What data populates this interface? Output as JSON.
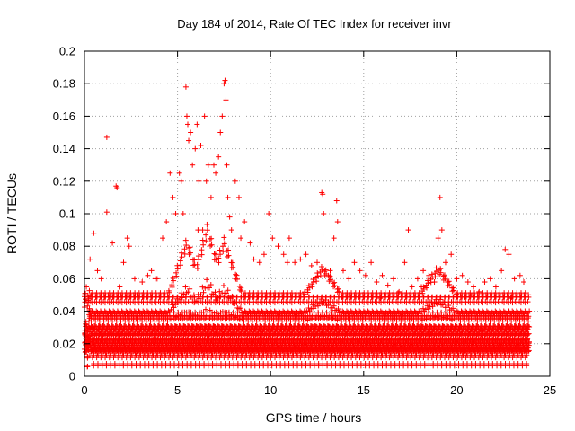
{
  "chart_data": {
    "type": "scatter",
    "title": "Day 184 of 2014, Rate Of TEC Index for receiver invr",
    "xlabel": "GPS time / hours",
    "ylabel": "ROTI / TECUs",
    "xlim": [
      0,
      25
    ],
    "ylim": [
      0,
      0.2
    ],
    "grid": true,
    "marker": "+",
    "color": "#ff0000",
    "x_ticks": [
      0,
      5,
      10,
      15,
      20,
      25
    ],
    "x_tick_labels": [
      "0",
      "5",
      "10",
      "15",
      "20",
      "25"
    ],
    "y_ticks": [
      0,
      0.02,
      0.04,
      0.06,
      0.08,
      0.1,
      0.12,
      0.14,
      0.16,
      0.18,
      0.2
    ],
    "y_tick_labels": [
      "0",
      "0.02",
      "0.04",
      "0.06",
      "0.08",
      "0.1",
      "0.12",
      "0.14",
      "0.16",
      "0.18",
      "0.2"
    ],
    "series": [
      {
        "name": "ROTI",
        "x": [
          0.1,
          0.3,
          0.5,
          0.7,
          0.9,
          1.2,
          1.2,
          1.5,
          1.7,
          1.75,
          2.1,
          2.3,
          2.4,
          2.7,
          3.1,
          3.4,
          3.6,
          3.9,
          4.2,
          4.4,
          4.6,
          4.75,
          4.9,
          5.1,
          5.2,
          5.3,
          5.45,
          5.5,
          5.55,
          5.6,
          5.7,
          5.8,
          5.95,
          6.05,
          6.15,
          6.25,
          6.35,
          6.45,
          6.55,
          6.65,
          6.8,
          6.95,
          7.05,
          7.2,
          7.3,
          7.4,
          7.5,
          7.55,
          7.6,
          7.65,
          7.7,
          7.8,
          7.9,
          8.1,
          8.3,
          8.6,
          8.9,
          9.1,
          9.4,
          9.65,
          9.9,
          10.1,
          10.4,
          10.7,
          11.0,
          11.3,
          11.6,
          11.9,
          12.2,
          12.5,
          12.75,
          12.8,
          12.85,
          13.1,
          13.4,
          13.55,
          13.6,
          13.9,
          14.2,
          14.5,
          14.8,
          15.1,
          15.4,
          15.7,
          16.0,
          16.3,
          16.6,
          16.9,
          17.2,
          17.4,
          17.6,
          17.9,
          18.2,
          18.5,
          18.8,
          19.0,
          19.1,
          19.2,
          19.4,
          19.7,
          20.0,
          20.3,
          20.6,
          20.9,
          21.2,
          21.5,
          21.8,
          22.1,
          22.4,
          22.6,
          22.8,
          23.1,
          23.4,
          23.6,
          0.4,
          1.9,
          3.8,
          6.1,
          8.4,
          10.9,
          13.2,
          15.9,
          18.1,
          20.8,
          22.9
        ],
        "y": [
          0.055,
          0.072,
          0.088,
          0.065,
          0.06,
          0.101,
          0.147,
          0.082,
          0.117,
          0.116,
          0.07,
          0.085,
          0.08,
          0.06,
          0.058,
          0.062,
          0.065,
          0.06,
          0.085,
          0.095,
          0.125,
          0.11,
          0.1,
          0.125,
          0.12,
          0.1,
          0.178,
          0.16,
          0.155,
          0.145,
          0.15,
          0.13,
          0.14,
          0.155,
          0.12,
          0.142,
          0.09,
          0.16,
          0.12,
          0.13,
          0.11,
          0.13,
          0.125,
          0.135,
          0.15,
          0.16,
          0.18,
          0.182,
          0.17,
          0.13,
          0.11,
          0.098,
          0.09,
          0.12,
          0.11,
          0.095,
          0.082,
          0.072,
          0.07,
          0.075,
          0.1,
          0.085,
          0.08,
          0.075,
          0.085,
          0.07,
          0.072,
          0.075,
          0.068,
          0.07,
          0.113,
          0.112,
          0.1,
          0.062,
          0.085,
          0.108,
          0.095,
          0.065,
          0.06,
          0.07,
          0.065,
          0.062,
          0.07,
          0.058,
          0.062,
          0.056,
          0.06,
          0.052,
          0.07,
          0.09,
          0.055,
          0.06,
          0.065,
          0.062,
          0.058,
          0.085,
          0.11,
          0.09,
          0.07,
          0.075,
          0.06,
          0.062,
          0.058,
          0.055,
          0.052,
          0.058,
          0.06,
          0.055,
          0.065,
          0.078,
          0.075,
          0.06,
          0.062,
          0.058,
          0.05,
          0.055,
          0.06,
          0.09,
          0.085,
          0.07,
          0.065,
          0.048,
          0.055,
          0.05,
          0.048
        ]
      }
    ],
    "background_band": {
      "description_free": true,
      "x_start": 0,
      "x_end": 23.9,
      "y_floor_min": 0.004,
      "y_floor_max": 0.018,
      "y_band_max": 0.05,
      "bursts": [
        {
          "x": 5.5,
          "y": 0.09
        },
        {
          "x": 6.6,
          "y": 0.1
        },
        {
          "x": 7.5,
          "y": 0.09
        },
        {
          "x": 12.8,
          "y": 0.07
        },
        {
          "x": 19.0,
          "y": 0.07
        }
      ]
    }
  }
}
